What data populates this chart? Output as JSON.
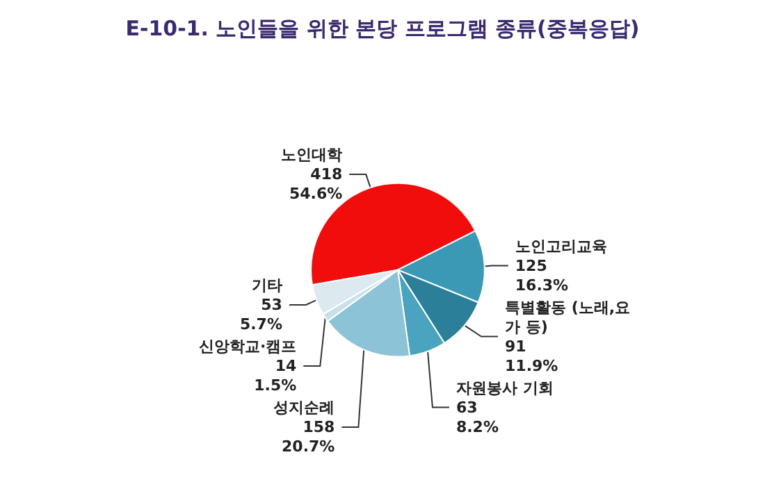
{
  "chart_data": {
    "type": "pie",
    "title": "E-10-1. 노인들을 위한 본당 프로그램 종류(중복응답)",
    "categories": [
      "노인대학",
      "노인고리교육",
      "특별활동 (노래,요가 등)",
      "자원봉사 기회",
      "성지순례",
      "신앙학교·캠프",
      "기타"
    ],
    "values": [
      418,
      125,
      91,
      63,
      158,
      14,
      53
    ],
    "value_labels": [
      "418\n54.6%",
      "125\n16.3%",
      "91\n11.9%",
      "63\n8.2%",
      "158\n20.7%",
      "14\n1.5%",
      "53\n5.7%"
    ],
    "colors": [
      "#f20d0d",
      "#3a9ab5",
      "#2c7f99",
      "#4aa3bf",
      "#8cc3d6",
      "#c8e0ea",
      "#dce9ef"
    ],
    "legend": false
  }
}
